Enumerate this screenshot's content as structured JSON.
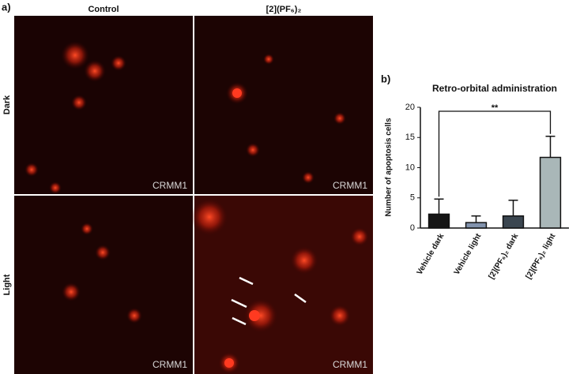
{
  "panel_a": {
    "label": "a)",
    "columns": [
      "Control",
      "[2](PF₆)₂"
    ],
    "rows": [
      "Dark",
      "Light"
    ],
    "stain_labels": [
      "CRMM1",
      "CRMM1",
      "CRMM1",
      "CRMM1"
    ]
  },
  "chart_data": {
    "type": "bar",
    "panel_label": "b)",
    "title": "Retro-orbital administration",
    "y_label": "Number of apoptosis cells",
    "categories": [
      "Vehicle dark",
      "Vehicle light",
      "[2](PF₆)₂ dark",
      "[2](PF₆)₂ light"
    ],
    "values": [
      2.3,
      0.9,
      2.0,
      11.7
    ],
    "errors": [
      2.5,
      1.1,
      2.6,
      3.5
    ],
    "colors": [
      "#151515",
      "#8293ad",
      "#3b4650",
      "#a9b7b8"
    ],
    "ylim": [
      0,
      20
    ],
    "yticks": [
      0,
      5,
      10,
      15,
      20
    ],
    "significance_label": "**"
  }
}
